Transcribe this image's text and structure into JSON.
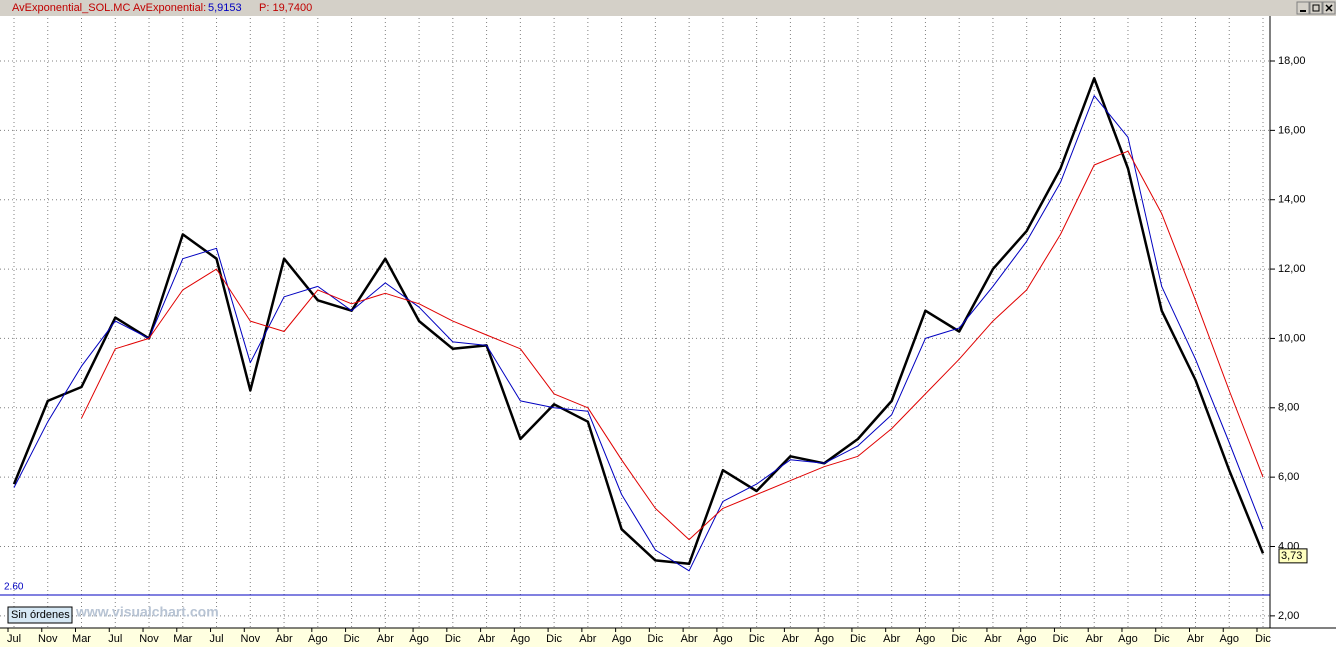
{
  "chart_data": {
    "type": "line",
    "title": "AvExponential_SOL.MC",
    "indicator_label": "AvExponential:",
    "indicator_value": "5,9153",
    "price_label": "P: 19,7400",
    "button": "Sin órdenes",
    "watermark": "www.visualchart.com",
    "categories": [
      "Jul",
      "Nov",
      "Mar",
      "Jul",
      "Nov",
      "Mar",
      "Jul",
      "Nov",
      "Abr",
      "Ago",
      "Dic",
      "Abr",
      "Ago",
      "Dic",
      "Abr",
      "Ago",
      "Dic",
      "Abr",
      "Ago",
      "Dic",
      "Abr",
      "Ago",
      "Dic",
      "Abr",
      "Ago",
      "Dic",
      "Abr",
      "Ago",
      "Dic",
      "Abr",
      "Ago",
      "Dic",
      "Abr",
      "Ago",
      "Dic",
      "Abr",
      "Ago",
      "Dic"
    ],
    "series": [
      {
        "color": "#000000",
        "width": 2.5,
        "values": [
          5.8,
          8.2,
          8.6,
          10.6,
          10.0,
          13.0,
          12.3,
          8.5,
          12.3,
          11.1,
          10.8,
          12.3,
          10.5,
          9.7,
          9.8,
          7.1,
          8.1,
          7.6,
          4.5,
          3.6,
          3.5,
          6.2,
          5.6,
          6.6,
          6.4,
          7.1,
          8.2,
          10.8,
          10.2,
          12.0,
          13.1,
          14.9,
          17.5,
          14.9,
          10.8,
          8.8,
          6.2,
          3.8
        ]
      },
      {
        "color": "#0000c0",
        "width": 1,
        "values": [
          5.7,
          7.6,
          9.2,
          10.5,
          10.0,
          12.3,
          12.6,
          9.3,
          11.2,
          11.5,
          10.8,
          11.6,
          10.9,
          9.9,
          9.8,
          8.2,
          8.0,
          7.9,
          5.5,
          3.9,
          3.3,
          5.3,
          5.8,
          6.5,
          6.4,
          6.9,
          7.8,
          10.0,
          10.3,
          11.5,
          12.8,
          14.5,
          17.0,
          15.8,
          11.5,
          9.4,
          7.0,
          4.5
        ]
      },
      {
        "color": "#e00000",
        "width": 1,
        "values": [
          null,
          null,
          7.7,
          9.7,
          10.0,
          11.4,
          12.0,
          10.5,
          10.2,
          11.4,
          11.0,
          11.3,
          11.0,
          10.5,
          10.1,
          9.7,
          8.4,
          8.0,
          6.5,
          5.1,
          4.2,
          5.1,
          5.5,
          5.9,
          6.3,
          6.6,
          7.4,
          8.4,
          9.4,
          10.5,
          11.4,
          13.0,
          15.0,
          15.4,
          13.6,
          11.1,
          8.5,
          6.0
        ]
      }
    ],
    "ylim": [
      1.65,
      19.24
    ],
    "yticks": [
      {
        "value": 2,
        "label": "2,00"
      },
      {
        "value": 4,
        "label": "4,00"
      },
      {
        "value": 6,
        "label": "6,00"
      },
      {
        "value": 8,
        "label": "8,00"
      },
      {
        "value": 10,
        "label": "10,00"
      },
      {
        "value": 12,
        "label": "12,00"
      },
      {
        "value": 14,
        "label": "14,00"
      },
      {
        "value": 16,
        "label": "16,00"
      },
      {
        "value": 18,
        "label": "18,00"
      }
    ],
    "grid": true,
    "hline": {
      "value": 2.6,
      "label": "2.60",
      "color": "#0000c0"
    },
    "last": {
      "value": 3.73,
      "label": "3,73"
    }
  }
}
